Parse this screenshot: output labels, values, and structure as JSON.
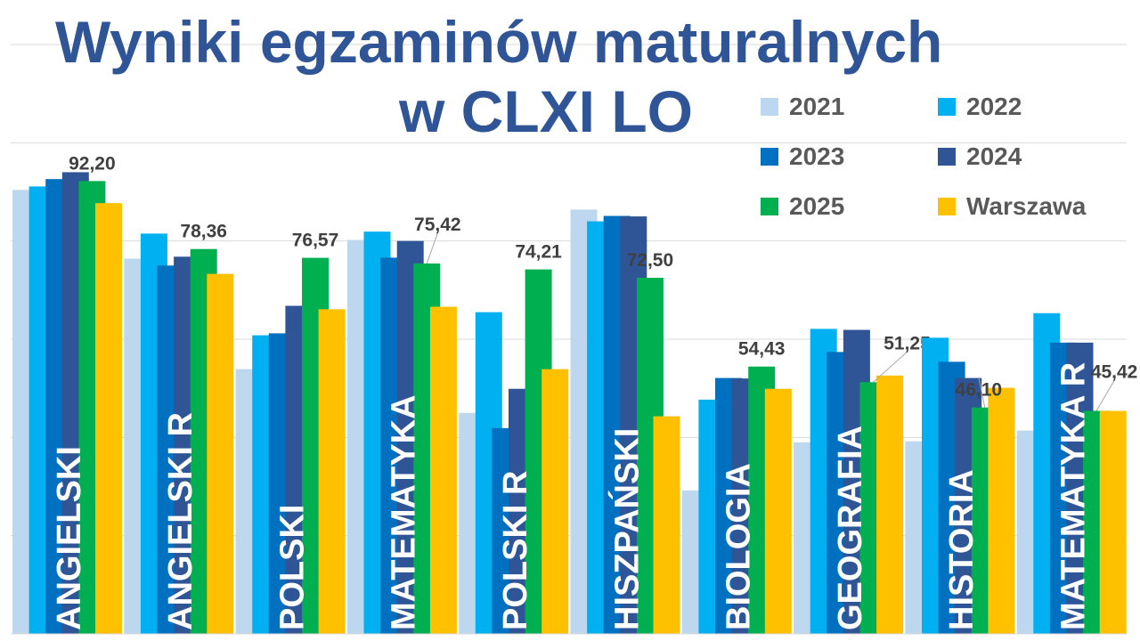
{
  "chart_data": {
    "type": "bar",
    "title": "Wyniki egzaminów maturalnych",
    "subtitle": "w CLXI LO",
    "xlabel": "",
    "ylabel": "",
    "ylim": [
      0,
      120
    ],
    "grid": true,
    "legend_placement": "top-right",
    "categories": [
      "ANGIELSKI",
      "ANGIELSKI R",
      "POLSKI",
      "MATEMATYKA",
      "POLSKI R",
      "HISZPAŃSKI",
      "BIOLOGIA",
      "GEOGRAFIA",
      "HISTORIA",
      "MATEMATYKA R"
    ],
    "series": [
      {
        "name": "2021",
        "color": "#BDD7EE",
        "values": [
          90.4,
          76.4,
          53.9,
          80.2,
          45.0,
          86.4,
          29.2,
          39.0,
          39.2,
          41.4
        ]
      },
      {
        "name": "2022",
        "color": "#00B0F0",
        "values": [
          91.1,
          81.5,
          60.8,
          81.9,
          65.5,
          84.0,
          47.7,
          62.1,
          60.3,
          65.3
        ]
      },
      {
        "name": "2023",
        "color": "#0070C0",
        "values": [
          92.6,
          75.0,
          61.2,
          76.6,
          41.9,
          85.1,
          52.1,
          57.4,
          55.4,
          59.3
        ]
      },
      {
        "name": "2024",
        "color": "#2F5597",
        "values": [
          94.0,
          76.8,
          66.8,
          80.0,
          49.9,
          85.0,
          52.0,
          61.9,
          52.1,
          59.3
        ]
      },
      {
        "name": "2025",
        "color": "#00B050",
        "values": [
          92.2,
          78.36,
          76.57,
          75.42,
          74.21,
          72.5,
          54.43,
          51.25,
          46.1,
          45.42
        ]
      },
      {
        "name": "Warszawa",
        "color": "#FFC000",
        "values": [
          87.7,
          73.3,
          66.1,
          66.6,
          53.9,
          44.3,
          49.9,
          52.6,
          50.1,
          45.4
        ]
      }
    ],
    "data_labels": [
      "92,20",
      "78,36",
      "76,57",
      "75,42",
      "74,21",
      "72,50",
      "54,43",
      "51,25",
      "46,10",
      "45,42"
    ]
  }
}
